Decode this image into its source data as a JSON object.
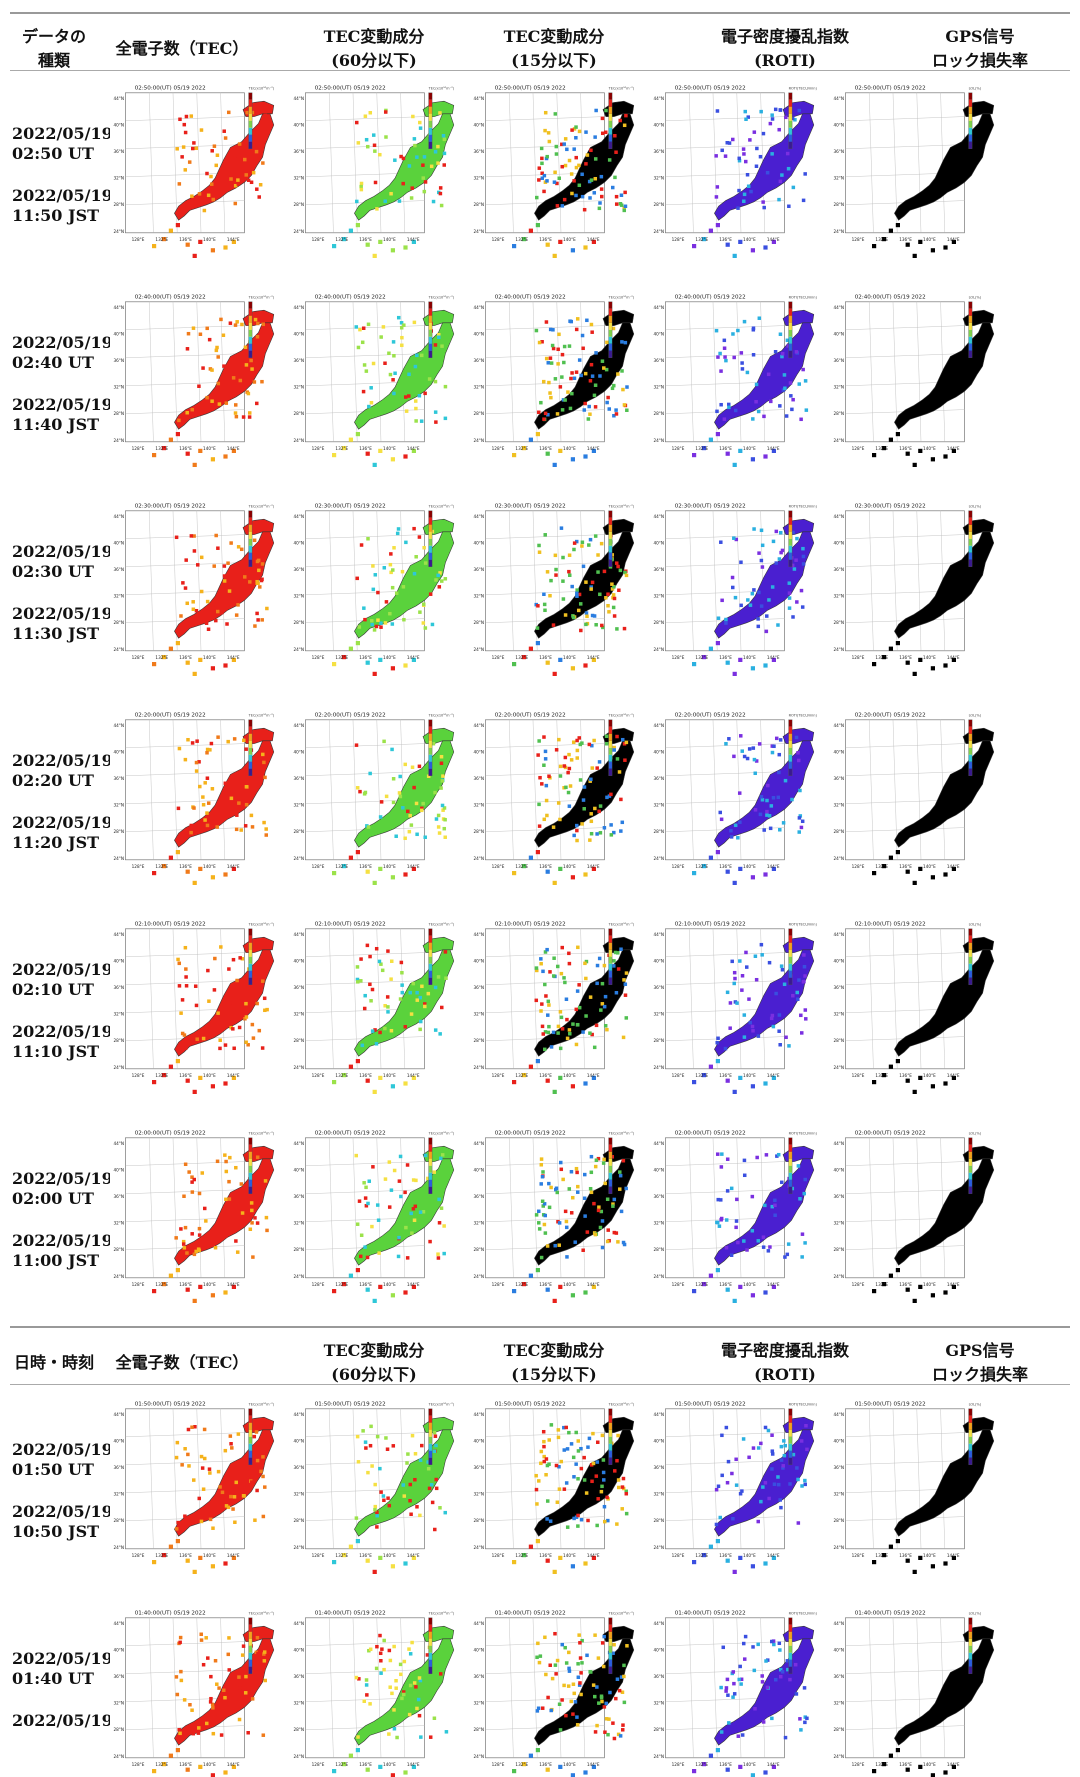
{
  "header1": {
    "col0_line1": "データの",
    "col0_line2": "種類",
    "col1": "全電子数（TEC）",
    "col2_line1": "TEC変動成分",
    "col2_line2": "(60分以下)",
    "col3_line1": "TEC変動成分",
    "col3_line2": "(15分以下)",
    "col4_line1": "電子密度擾乱指数",
    "col4_line2": "(ROTI)",
    "col5_line1": "GPS信号",
    "col5_line2": "ロック損失率"
  },
  "header2": {
    "col0": "日時・時刻",
    "col1": "全電子数（TEC）",
    "col2_line1": "TEC変動成分",
    "col2_line2": "(60分以下)",
    "col3_line1": "TEC変動成分",
    "col3_line2": "(15分以下)",
    "col4_line1": "電子密度擾乱指数",
    "col4_line2": "(ROTI)",
    "col5_line1": "GPS信号",
    "col5_line2": "ロック損失率"
  },
  "rows": [
    {
      "ut_date": "2022/05/19",
      "ut_time": "02:50 UT",
      "jst_date": "2022/05/19",
      "jst_time": "11:50 JST",
      "map_title": "02:50:00(UT) 05/19 2022"
    },
    {
      "ut_date": "2022/05/19",
      "ut_time": "02:40 UT",
      "jst_date": "2022/05/19",
      "jst_time": "11:40 JST",
      "map_title": "02:40:00(UT) 05/19 2022"
    },
    {
      "ut_date": "2022/05/19",
      "ut_time": "02:30 UT",
      "jst_date": "2022/05/19",
      "jst_time": "11:30 JST",
      "map_title": "02:30:00(UT) 05/19 2022"
    },
    {
      "ut_date": "2022/05/19",
      "ut_time": "02:20 UT",
      "jst_date": "2022/05/19",
      "jst_time": "11:20 JST",
      "map_title": "02:20:00(UT) 05/19 2022"
    },
    {
      "ut_date": "2022/05/19",
      "ut_time": "02:10 UT",
      "jst_date": "2022/05/19",
      "jst_time": "11:10 JST",
      "map_title": "02:10:00(UT) 05/19 2022"
    },
    {
      "ut_date": "2022/05/19",
      "ut_time": "02:00 UT",
      "jst_date": "2022/05/19",
      "jst_time": "11:00 JST",
      "map_title": "02:00:00(UT) 05/19 2022"
    },
    {
      "ut_date": "2022/05/19",
      "ut_time": "01:50 UT",
      "jst_date": "2022/05/19",
      "jst_time": "10:50 JST",
      "map_title": "01:50:00(UT) 05/19 2022"
    },
    {
      "ut_date": "2022/05/19",
      "ut_time": "01:40 UT",
      "jst_date": "2022/05/19",
      "jst_time": "",
      "map_title": "01:40:00(UT) 05/19 2022"
    }
  ],
  "map": {
    "lat_ticks": [
      "44°N",
      "40°N",
      "36°N",
      "32°N",
      "28°N",
      "24°N"
    ],
    "lon_ticks": [
      "128°E",
      "132°E",
      "136°E",
      "140°E",
      "144°E"
    ],
    "legend_units": [
      "TEC(x10¹⁶m⁻²)",
      "TEC(x10¹⁶m⁻²)",
      "TEC(x10¹⁶m⁻²)",
      "ROTI(TECU/min)",
      "LOL(%)"
    ]
  },
  "colors": {
    "tec": "#e8201a",
    "tec_high": "#f07a1a",
    "dtec60": "#5ad23c",
    "dtec15": "#000000",
    "roti": "#4a1fd0",
    "lol": "#000000",
    "rule": "#999999"
  }
}
